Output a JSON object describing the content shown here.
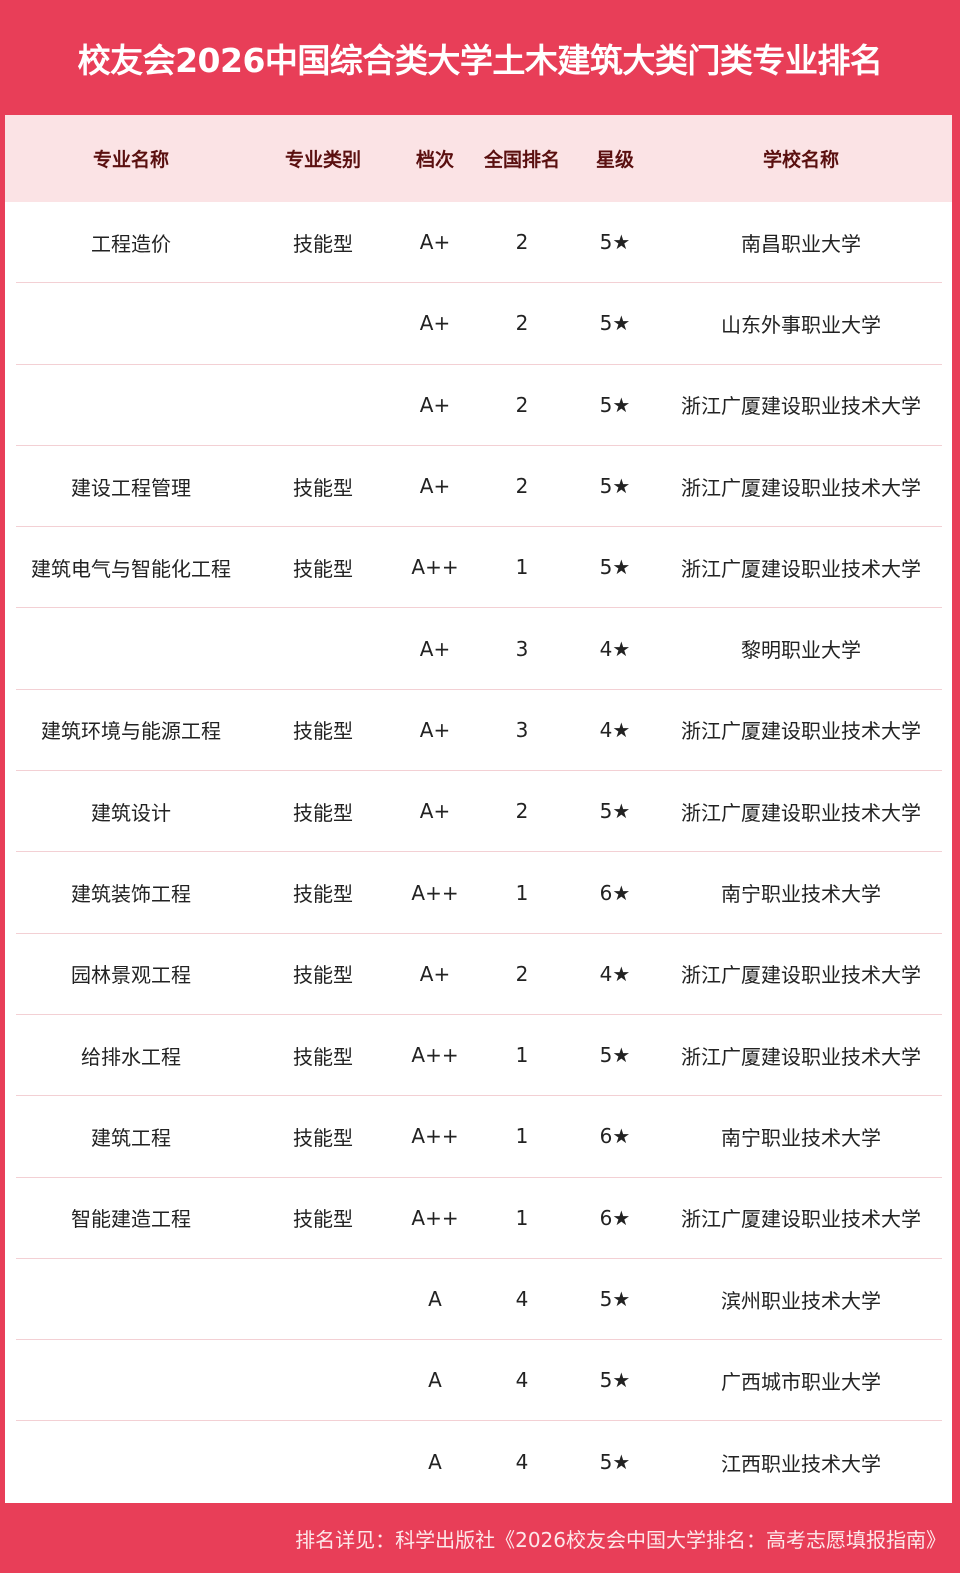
{
  "title": "校友会2026中国综合类大学土木建筑大类门类专业排名",
  "headers": [
    "专业名称",
    "专业类别",
    "档次",
    "全国排名",
    "星级",
    "学校名称"
  ],
  "rows": [
    [
      "工程造价",
      "技能型",
      "A+",
      "2",
      "5★",
      "南昌职业大学"
    ],
    [
      "",
      "",
      "A+",
      "2",
      "5★",
      "山东外事职业大学"
    ],
    [
      "",
      "",
      "A+",
      "2",
      "5★",
      "浙江广厦建设职业技术大学"
    ],
    [
      "建设工程管理",
      "技能型",
      "A+",
      "2",
      "5★",
      "浙江广厦建设职业技术大学"
    ],
    [
      "建筑电气与智能化工程",
      "技能型",
      "A++",
      "1",
      "5★",
      "浙江广厦建设职业技术大学"
    ],
    [
      "",
      "",
      "A+",
      "3",
      "4★",
      "黎明职业大学"
    ],
    [
      "建筑环境与能源工程",
      "技能型",
      "A+",
      "3",
      "4★",
      "浙江广厦建设职业技术大学"
    ],
    [
      "建筑设计",
      "技能型",
      "A+",
      "2",
      "5★",
      "浙江广厦建设职业技术大学"
    ],
    [
      "建筑装饰工程",
      "技能型",
      "A++",
      "1",
      "6★",
      "南宁职业技术大学"
    ],
    [
      "园林景观工程",
      "技能型",
      "A+",
      "2",
      "4★",
      "浙江广厦建设职业技术大学"
    ],
    [
      "给排水工程",
      "技能型",
      "A++",
      "1",
      "5★",
      "浙江广厦建设职业技术大学"
    ],
    [
      "建筑工程",
      "技能型",
      "A++",
      "1",
      "6★",
      "南宁职业技术大学"
    ],
    [
      "智能建造工程",
      "技能型",
      "A++",
      "1",
      "6★",
      "浙江广厦建设职业技术大学"
    ],
    [
      "",
      "",
      "A",
      "4",
      "5★",
      "滨州职业技术大学"
    ],
    [
      "",
      "",
      "A",
      "4",
      "5★",
      "广西城市职业大学"
    ],
    [
      "",
      "",
      "A",
      "4",
      "5★",
      "江西职业技术大学"
    ]
  ],
  "footer": "排名详见：科学出版社《2026校友会中国大学排名：高考志愿填报指南》",
  "colors": {
    "brand": "#e83e58",
    "header_bg": "#fbe3e5"
  }
}
